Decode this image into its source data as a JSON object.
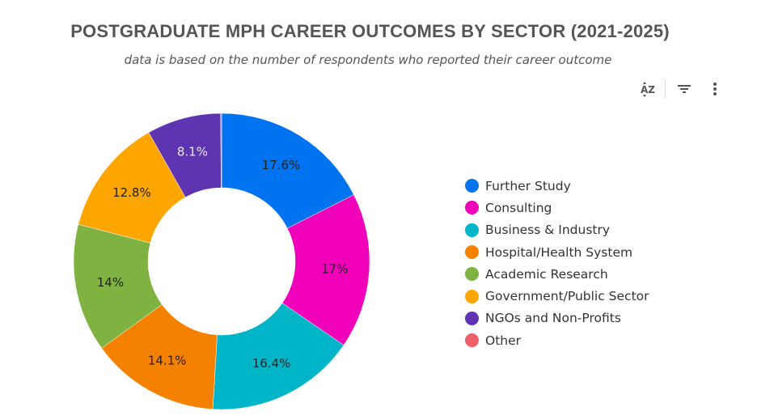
{
  "chart_data": {
    "type": "pie",
    "subtype": "donut",
    "title": "POSTGRADUATE MPH CAREER OUTCOMES BY SECTOR (2021-2025)",
    "subtitle": "data is based on the number of respondents who reported their career outcome",
    "legend_position": "right",
    "unit": "%",
    "categories": [
      "Further Study",
      "Consulting",
      "Business & Industry",
      "Hospital/Health System",
      "Academic Research",
      "Government/Public Sector",
      "NGOs and Non-Profits",
      "Other"
    ],
    "values": [
      17.6,
      17,
      16.4,
      14.1,
      14,
      12.8,
      8.1,
      0.1
    ],
    "data_labels": [
      "17.6%",
      "17%",
      "16.4%",
      "14.1%",
      "14%",
      "12.8%",
      "8.1%",
      ""
    ],
    "colors": [
      "#0073f0",
      "#f000b8",
      "#00b5c8",
      "#f48200",
      "#7fb241",
      "#ffa500",
      "#5f34b0",
      "#ef5f67"
    ],
    "label_colors": [
      "#222222",
      "#222222",
      "#222222",
      "#222222",
      "#222222",
      "#222222",
      "#e8e8e8",
      "#222222"
    ]
  },
  "toolbar": {
    "sort_icon": "sort-az-icon",
    "sort_label": "AZ",
    "filter_icon": "filter-icon",
    "menu_icon": "more-vert-icon"
  }
}
